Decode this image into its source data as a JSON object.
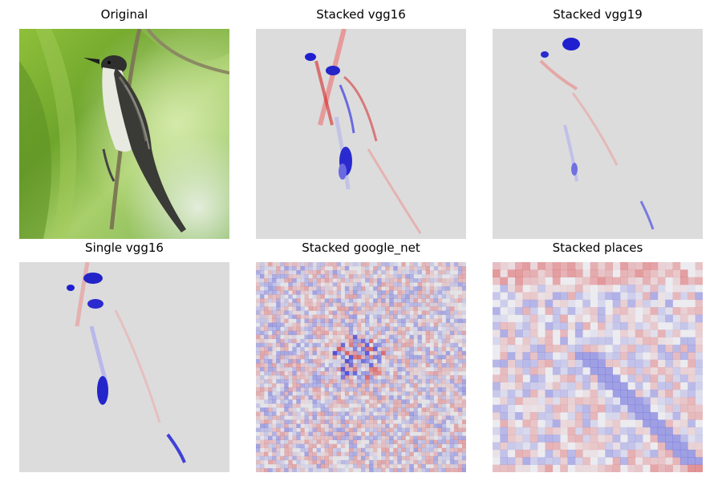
{
  "panels": [
    {
      "title": "Original",
      "kind": "photo",
      "icon": "bird-photo"
    },
    {
      "title": "Stacked vgg16",
      "kind": "saliency-smooth"
    },
    {
      "title": "Stacked vgg19",
      "kind": "saliency-smooth"
    },
    {
      "title": "Single vgg16",
      "kind": "saliency-smooth"
    },
    {
      "title": "Stacked google_net",
      "kind": "saliency-noisy"
    },
    {
      "title": "Stacked places",
      "kind": "saliency-blocky"
    }
  ],
  "colors": {
    "background": "#ffffff",
    "neutral": "#dcdcdc",
    "positive": "#d62728",
    "negative": "#1f1fd0",
    "foliage_dark": "#6a9a2a",
    "foliage_light": "#b5d77a",
    "bird_body": "#2f2f2f",
    "bird_belly": "#e8e9e0",
    "branch": "#7d7a55"
  }
}
